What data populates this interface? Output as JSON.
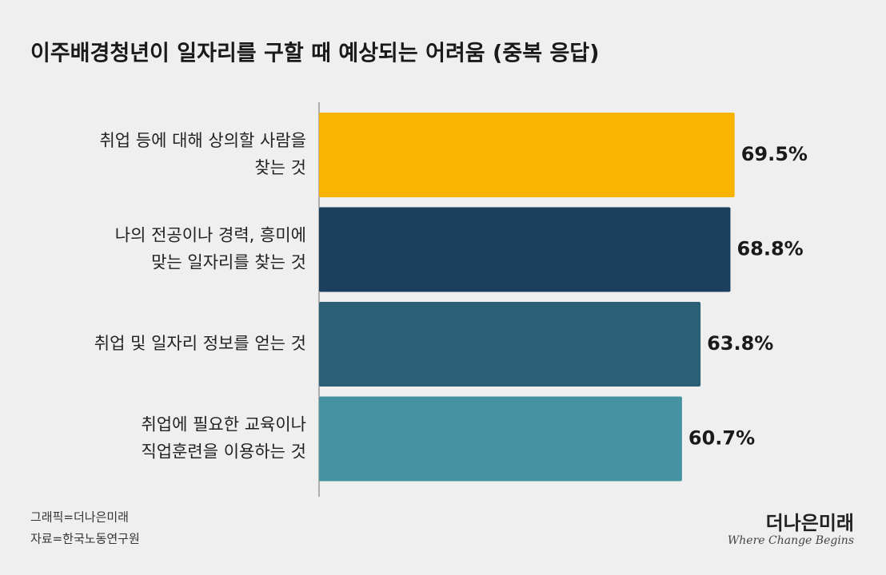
{
  "chart_data": {
    "type": "barh",
    "title": "이주배경청년이 일자리를 구할 때 예상되는 어려움 (중복 응답)",
    "categories": [
      "취업 등에 대해 상의할 사람을\n찾는 것",
      "나의 전공이나 경력, 흥미에\n맞는 일자리를 찾는 것",
      "취업 및 일자리 정보를 얻는 것",
      "취업에 필요한 교육이나\n직업훈련을 이용하는 것"
    ],
    "values": [
      69.5,
      68.8,
      63.8,
      60.7
    ],
    "value_labels": [
      "69.5%",
      "68.8%",
      "63.8%",
      "60.7%"
    ],
    "colors": [
      "#f8b400",
      "#1b3f5c",
      "#2a5f75",
      "#4592a0"
    ],
    "xlim": [
      0,
      90
    ],
    "notes": [
      "그래픽=더나은미래",
      "자료=한국노동연구원"
    ],
    "logo": {
      "name": "더나은미래",
      "tagline": "Where Change Begins"
    }
  }
}
